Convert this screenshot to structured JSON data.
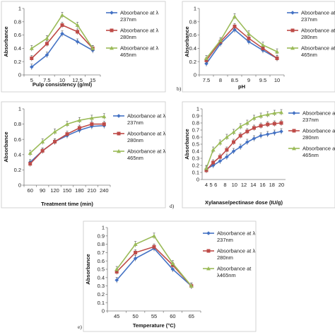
{
  "colors": {
    "s237": "#4472c4",
    "s280": "#be4b48",
    "s465": "#9bbb59",
    "errorbar": "#555555"
  },
  "chart_data": [
    {
      "type": "line",
      "ylabel": "Absorbance",
      "xlabel": "Pulp consistency (g/ml)",
      "ylim": [
        0,
        1
      ],
      "yticks": [
        0,
        0.2,
        0.4,
        0.6,
        0.8,
        1
      ],
      "ytick_labels": [
        "0",
        "0.2",
        "0.4",
        "0.6",
        "0.8",
        "1"
      ],
      "categories": [
        "5",
        "7.5",
        "10",
        "12.5",
        "15"
      ],
      "series": [
        {
          "name": "Absorbance at λ 237nm",
          "key": "s237",
          "marker": "diamond",
          "values": [
            0.12,
            0.3,
            0.62,
            0.5,
            0.37
          ]
        },
        {
          "name": "Absorbance at λ 280nm",
          "key": "s280",
          "marker": "square",
          "values": [
            0.25,
            0.47,
            0.75,
            0.65,
            0.4
          ]
        },
        {
          "name": "Absorbance at λ 465nm",
          "key": "s465",
          "marker": "triangle",
          "values": [
            0.4,
            0.55,
            0.9,
            0.75,
            0.4
          ]
        }
      ],
      "panel_label": "",
      "legend_position": "right"
    },
    {
      "type": "line",
      "ylabel": "Absorbance",
      "xlabel": "pH",
      "ylim": [
        0,
        1
      ],
      "yticks": [
        0,
        0.2,
        0.4,
        0.6,
        0.8,
        1
      ],
      "ytick_labels": [
        "0",
        "0.2",
        "0.4",
        "0.6",
        "0.8",
        "1"
      ],
      "categories": [
        "7.5",
        "8",
        "8.5",
        "9",
        "9.5",
        "10"
      ],
      "series": [
        {
          "name": "Absorbance at λ 237nm",
          "key": "s237",
          "marker": "diamond",
          "values": [
            0.17,
            0.47,
            0.68,
            0.5,
            0.37,
            0.25
          ]
        },
        {
          "name": "Absorbance at λ 280nm",
          "key": "s280",
          "marker": "square",
          "values": [
            0.22,
            0.5,
            0.73,
            0.55,
            0.4,
            0.25
          ]
        },
        {
          "name": "Absorbance at λ 465nm",
          "key": "s465",
          "marker": "triangle",
          "values": [
            0.25,
            0.52,
            0.88,
            0.62,
            0.45,
            0.35
          ]
        }
      ],
      "legend_labels": [
        "Absorbance at λ",
        "237nm",
        "Absorbance at λ",
        "280nm",
        "Absorbance at λ",
        "465nm"
      ],
      "panel_label": "b)",
      "legend_position": "right"
    },
    {
      "type": "line",
      "ylabel": "Absorbance",
      "xlabel": "Treatment time (min)",
      "ylim": [
        0,
        1
      ],
      "yticks": [
        0,
        0.2,
        0.4,
        0.6,
        0.8,
        1
      ],
      "ytick_labels": [
        "0",
        "0.2",
        "0.4",
        "0.6",
        "0.8",
        "1"
      ],
      "categories": [
        "60",
        "90",
        "120",
        "150",
        "180",
        "210",
        "240"
      ],
      "series": [
        {
          "name": "Absorbance at λ 237nm",
          "key": "s237",
          "marker": "diamond",
          "values": [
            0.3,
            0.45,
            0.57,
            0.65,
            0.72,
            0.77,
            0.78
          ]
        },
        {
          "name": "Absorbance at λ 280nm",
          "key": "s280",
          "marker": "square",
          "values": [
            0.28,
            0.45,
            0.57,
            0.67,
            0.75,
            0.8,
            0.8
          ]
        },
        {
          "name": "Absorbance at λ 465nm",
          "key": "s465",
          "marker": "triangle",
          "values": [
            0.42,
            0.57,
            0.7,
            0.8,
            0.85,
            0.88,
            0.9
          ]
        }
      ],
      "panel_label": "c)",
      "legend_position": "right"
    },
    {
      "type": "line",
      "ylabel": "Absorbance",
      "xlabel": "Xylanase/pectinase dose (IU/g)",
      "ylim": [
        0,
        1
      ],
      "yticks": [
        0,
        0.1,
        0.2,
        0.3,
        0.4,
        0.5,
        0.6,
        0.7,
        0.8,
        0.9,
        1
      ],
      "ytick_labels": [
        "0",
        "0.1",
        "0.2",
        "0.3",
        "0.4",
        "0.5",
        "0.6",
        "0.7",
        "0.8",
        "0.9",
        "1"
      ],
      "categories": [
        "4",
        "5",
        "6",
        "7",
        "8",
        "9",
        "10",
        "11",
        "12",
        "13",
        "14",
        "15",
        "16",
        "17",
        "18",
        "19",
        "20"
      ],
      "tick_labels": [
        "4",
        "5",
        "6",
        "8",
        "10",
        "12",
        "14",
        "16",
        "18",
        "20"
      ],
      "series": [
        {
          "name": "Absorbance at λ 237nm",
          "key": "s237",
          "marker": "diamond",
          "values": [
            0.15,
            0.2,
            0.26,
            0.32,
            0.4,
            0.46,
            0.53,
            0.58,
            0.62,
            0.64,
            0.66,
            0.68
          ]
        },
        {
          "name": "Absorbance at λ 280nm",
          "key": "s280",
          "marker": "square",
          "values": [
            0.13,
            0.24,
            0.32,
            0.42,
            0.53,
            0.62,
            0.68,
            0.73,
            0.76,
            0.78,
            0.79,
            0.8
          ]
        },
        {
          "name": "Absorbance at λ 465nm",
          "key": "s465",
          "marker": "triangle",
          "values": [
            0.16,
            0.42,
            0.52,
            0.6,
            0.67,
            0.75,
            0.8,
            0.87,
            0.9,
            0.92,
            0.94,
            0.95
          ]
        }
      ],
      "x_values": [
        "4",
        "5",
        "6",
        "8",
        "10",
        "12",
        "14",
        "16",
        "18",
        "19",
        "20",
        "20"
      ],
      "panel_label": "d)",
      "legend_position": "right"
    },
    {
      "type": "line",
      "ylabel": "Absorbance",
      "xlabel": "Temperature (°C)",
      "ylim": [
        0,
        1
      ],
      "yticks": [
        0,
        0.1,
        0.2,
        0.3,
        0.4,
        0.5,
        0.6,
        0.7,
        0.8,
        0.9,
        1
      ],
      "ytick_labels": [
        "0",
        "0.1",
        "0.2",
        "0.3",
        "0.4",
        "0.5",
        "0.6",
        "0.7",
        "0.8",
        "0.9",
        "1"
      ],
      "categories": [
        "45",
        "50",
        "55",
        "60",
        "65"
      ],
      "series": [
        {
          "name": "Absorbance at λ 237nm",
          "key": "s237",
          "marker": "diamond",
          "values": [
            0.37,
            0.63,
            0.75,
            0.5,
            0.3
          ]
        },
        {
          "name": "Absorbance at λ 280nm",
          "key": "s280",
          "marker": "square",
          "values": [
            0.47,
            0.7,
            0.77,
            0.55,
            0.3
          ]
        },
        {
          "name": "Absorbance at λ 465nm",
          "key": "s465",
          "marker": "triangle",
          "values": [
            0.5,
            0.8,
            0.9,
            0.57,
            0.3
          ]
        }
      ],
      "panel_label": "e)",
      "legend_position": "right"
    }
  ],
  "legend_text": {
    "panel0": [
      [
        "Absorbance at λ",
        "237nm"
      ],
      [
        "Absorbance at λ",
        "280nm"
      ],
      [
        "Absorbance at λ",
        "465nm"
      ]
    ],
    "panel1": [
      [
        "Absorbance at λ",
        "237nm"
      ],
      [
        "Absorbance at λ",
        "280nm"
      ],
      [
        "Absorbance at λ",
        "465nm"
      ]
    ],
    "panel2": [
      [
        "Absorbance at λ",
        "237nm"
      ],
      [
        "Absorbance at λ",
        "280nm"
      ],
      [
        "Absorbance at λ",
        "465nm"
      ]
    ],
    "panel3": [
      [
        "Absorbance at λ",
        "237nm"
      ],
      [
        "Absorbance at λ",
        "280nm"
      ],
      [
        "Absorbance at λ",
        "465nm"
      ]
    ],
    "panel4": [
      [
        "Absorbance at λ",
        "237nm"
      ],
      [
        "Absorbance at λ",
        "280nm"
      ],
      [
        "Absorbance at",
        "λ465nm"
      ]
    ]
  }
}
